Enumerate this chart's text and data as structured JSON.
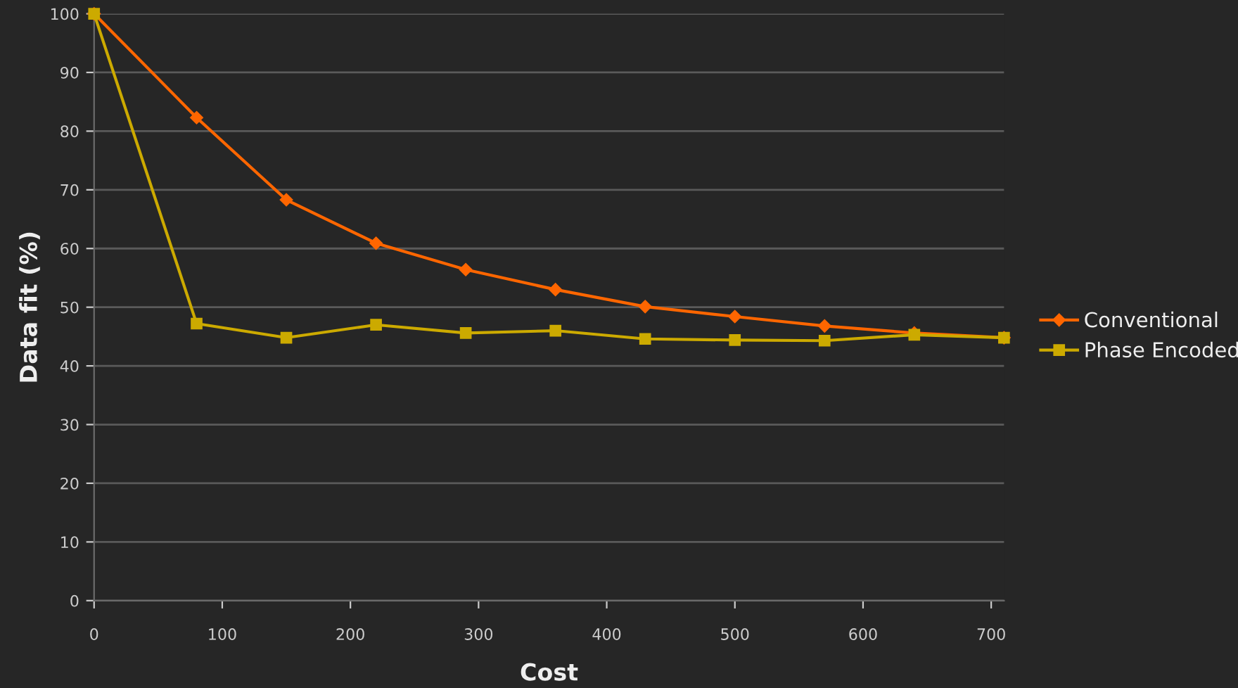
{
  "chart_data": {
    "type": "line",
    "xlabel": "Cost",
    "ylabel": "Data fit (%)",
    "x": [
      0,
      80,
      150,
      220,
      290,
      360,
      430,
      500,
      570,
      640,
      710
    ],
    "series": [
      {
        "name": "Conventional",
        "color": "#ff6600",
        "marker": "diamond",
        "values": [
          100,
          82.3,
          68.3,
          60.9,
          56.4,
          53,
          50.1,
          48.4,
          46.8,
          45.6,
          44.8
        ]
      },
      {
        "name": "Phase Encoded",
        "color": "#ccaa00",
        "marker": "square",
        "values": [
          100,
          47.2,
          44.8,
          47,
          45.6,
          46,
          44.6,
          44.4,
          44.3,
          45.3,
          44.8
        ]
      }
    ],
    "xlim": [
      0,
      710
    ],
    "xticks": [
      0,
      100,
      200,
      300,
      400,
      500,
      600,
      700
    ],
    "ylim": [
      0,
      100
    ],
    "yticks": [
      0,
      10,
      20,
      30,
      40,
      50,
      60,
      70,
      80,
      90,
      100
    ],
    "grid": "y",
    "legend": "right",
    "line_style": "solid"
  }
}
